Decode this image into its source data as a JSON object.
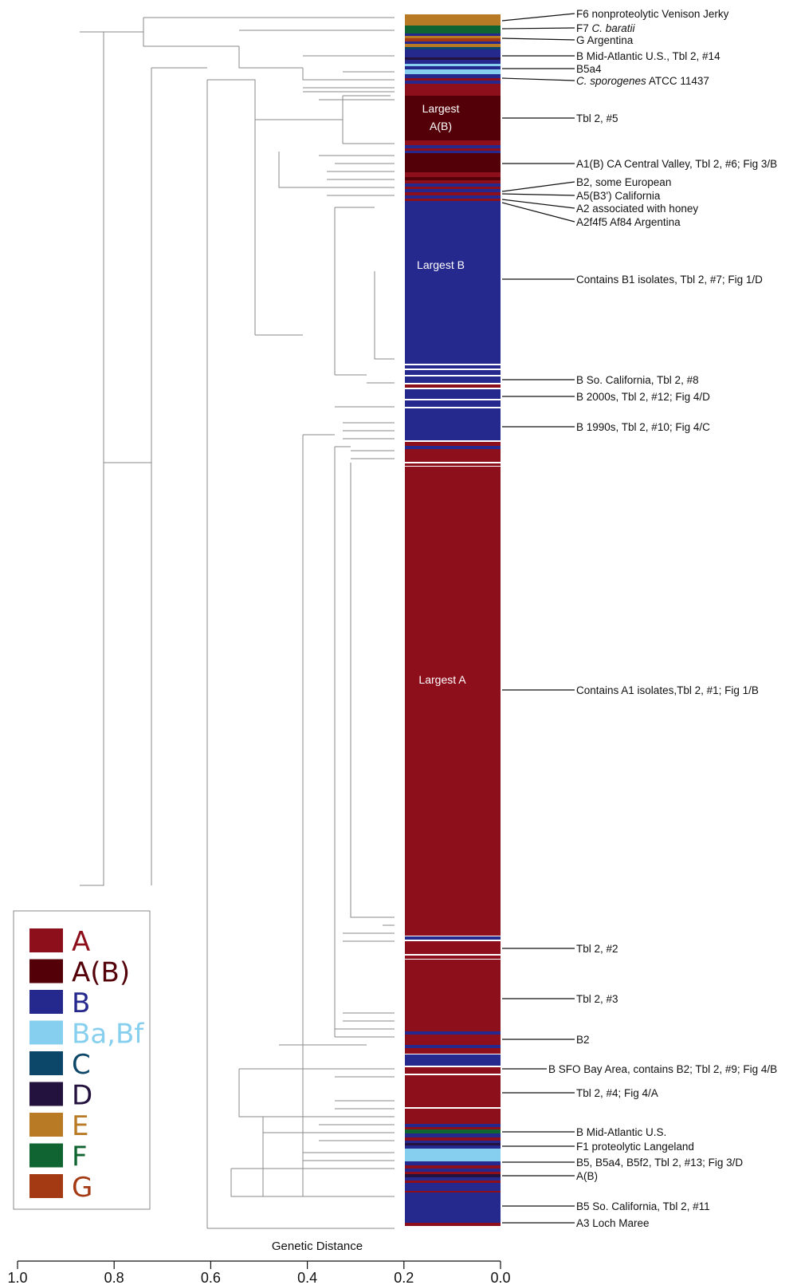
{
  "colors": {
    "A": "#8e0f1c",
    "A(B)": "#540009",
    "B": "#25288c",
    "Ba,Bf": "#87cfee",
    "C": "#0c4668",
    "D": "#23113e",
    "E": "#b87a25",
    "F": "#0f6432",
    "G": "#a43a14"
  },
  "legend": {
    "items": [
      {
        "key": "A",
        "label": "A"
      },
      {
        "key": "A(B)",
        "label": "A(B)"
      },
      {
        "key": "B",
        "label": "B"
      },
      {
        "key": "Ba,Bf",
        "label": "Ba,Bf"
      },
      {
        "key": "C",
        "label": "C"
      },
      {
        "key": "D",
        "label": "D"
      },
      {
        "key": "E",
        "label": "E"
      },
      {
        "key": "F",
        "label": "F"
      },
      {
        "key": "G",
        "label": "G"
      }
    ]
  },
  "clade_labels": [
    "Largest",
    "A(B)",
    "Largest B",
    "Largest A"
  ],
  "annotations": [
    {
      "text": "F6 nonproteolytic Venison Jerky"
    },
    {
      "prefix": "F7 ",
      "italic": "C. baratii",
      "suffix": ""
    },
    {
      "text": "G Argentina"
    },
    {
      "text": "B Mid-Atlantic U.S., Tbl 2, #14"
    },
    {
      "text": "B5a4"
    },
    {
      "prefix": "",
      "italic": "C. sporogenes",
      "suffix": " ATCC 11437"
    },
    {
      "text": "Tbl 2, #5"
    },
    {
      "text": "A1(B) CA Central Valley, Tbl 2, #6; Fig 3/B"
    },
    {
      "text": "B2, some European"
    },
    {
      "text": "A5(B3') California"
    },
    {
      "text": "A2 associated with honey"
    },
    {
      "text": "A2f4f5 Af84 Argentina"
    },
    {
      "text": "Contains B1 isolates, Tbl 2, #7; Fig 1/D"
    },
    {
      "text": "B So. California, Tbl 2, #8"
    },
    {
      "text": "B 2000s, Tbl 2, #12; Fig 4/D"
    },
    {
      "text": "B 1990s, Tbl 2, #10; Fig 4/C"
    },
    {
      "text": "Contains A1 isolates,Tbl 2, #1; Fig 1/B"
    },
    {
      "text": "Tbl 2, #2"
    },
    {
      "text": "Tbl 2, #3"
    },
    {
      "text": "B2"
    },
    {
      "text": "B SFO Bay Area, contains B2; Tbl 2, #9; Fig 4/B"
    },
    {
      "text": "Tbl 2, #4; Fig 4/A"
    },
    {
      "text": "B Mid-Atlantic U.S."
    },
    {
      "text": "F1 proteolytic Langeland"
    },
    {
      "text": "B5, B5a4, B5f2,  Tbl 2, #13; Fig 3/D"
    },
    {
      "text": "A(B)"
    },
    {
      "text": "B5 So. California, Tbl 2, #11"
    },
    {
      "text": "A3 Loch Maree"
    }
  ],
  "axis": {
    "title": "Genetic Distance",
    "ticks": [
      "1.0",
      "0.8",
      "0.6",
      "0.4",
      "0.2",
      "0.0"
    ]
  }
}
